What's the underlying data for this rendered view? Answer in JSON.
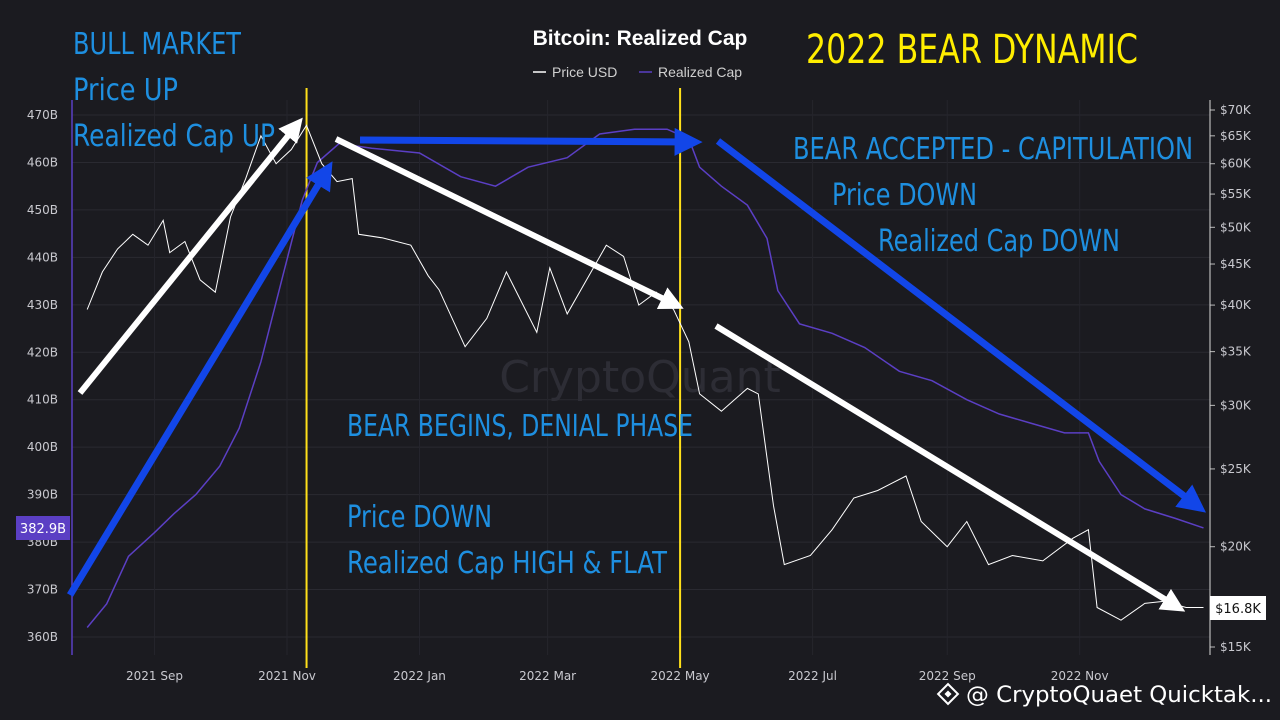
{
  "chart_data": {
    "type": "line",
    "title": "Bitcoin: Realized Cap",
    "headline": "2022 BEAR DYNAMIC",
    "watermark": "CryptoQuant",
    "footer_credit": "@ CryptoQuaet Quicktak...",
    "legend": {
      "placement": "top-center",
      "entries": [
        "Price USD",
        "Realized Cap"
      ]
    },
    "colors": {
      "background": "#1b1b20",
      "price_line": "#ffffff",
      "realized_cap_line": "#5b3fc4",
      "headline": "#ffee00",
      "annotation_text": "#1e8fe0",
      "blue_arrows": "#1246e8",
      "white_arrows": "#ffffff",
      "phase_lines": "#ffe01a",
      "realized_cap_badge": "#5b3fc4",
      "price_badge": "#ffffff"
    },
    "x_ticks": [
      "2021 Sep",
      "2021 Nov",
      "2022 Jan",
      "2022 Mar",
      "2022 May",
      "2022 Jul",
      "2022 Sep",
      "2022 Nov"
    ],
    "left_axis": {
      "unit": "B USD",
      "ticks": [
        "470B",
        "460B",
        "450B",
        "440B",
        "430B",
        "420B",
        "410B",
        "400B",
        "390B",
        "380B",
        "370B",
        "360B"
      ]
    },
    "right_axis": {
      "scale": "log",
      "ticks": [
        "$70K",
        "$65K",
        "$60K",
        "$55K",
        "$50K",
        "$45K",
        "$40K",
        "$35K",
        "$30K",
        "$25K",
        "$20K",
        "$15K"
      ]
    },
    "current_values": {
      "realized_cap": "382.9B",
      "price": "$16.8K"
    },
    "series": [
      {
        "name": "Price USD",
        "axis": "right",
        "points": [
          [
            "2021-08-01",
            39500
          ],
          [
            "2021-08-08",
            44000
          ],
          [
            "2021-08-15",
            47000
          ],
          [
            "2021-08-22",
            49000
          ],
          [
            "2021-08-29",
            47500
          ],
          [
            "2021-09-05",
            51000
          ],
          [
            "2021-09-08",
            46500
          ],
          [
            "2021-09-15",
            48000
          ],
          [
            "2021-09-22",
            43000
          ],
          [
            "2021-09-29",
            41500
          ],
          [
            "2021-10-06",
            51500
          ],
          [
            "2021-10-13",
            57500
          ],
          [
            "2021-10-20",
            65000
          ],
          [
            "2021-10-27",
            60000
          ],
          [
            "2021-11-03",
            62500
          ],
          [
            "2021-11-10",
            67000
          ],
          [
            "2021-11-17",
            60000
          ],
          [
            "2021-11-24",
            57000
          ],
          [
            "2021-12-01",
            57500
          ],
          [
            "2021-12-04",
            49000
          ],
          [
            "2021-12-15",
            48500
          ],
          [
            "2021-12-28",
            47500
          ],
          [
            "2022-01-05",
            43500
          ],
          [
            "2022-01-10",
            41800
          ],
          [
            "2022-01-22",
            35500
          ],
          [
            "2022-02-01",
            38500
          ],
          [
            "2022-02-10",
            44000
          ],
          [
            "2022-02-24",
            37000
          ],
          [
            "2022-03-02",
            44500
          ],
          [
            "2022-03-10",
            39000
          ],
          [
            "2022-03-28",
            47500
          ],
          [
            "2022-04-05",
            46000
          ],
          [
            "2022-04-12",
            40000
          ],
          [
            "2022-04-20",
            41500
          ],
          [
            "2022-04-28",
            39500
          ],
          [
            "2022-05-05",
            36000
          ],
          [
            "2022-05-10",
            31000
          ],
          [
            "2022-05-20",
            29500
          ],
          [
            "2022-06-01",
            31500
          ],
          [
            "2022-06-06",
            31000
          ],
          [
            "2022-06-13",
            22500
          ],
          [
            "2022-06-18",
            19000
          ],
          [
            "2022-06-30",
            19500
          ],
          [
            "2022-07-10",
            21000
          ],
          [
            "2022-07-20",
            23000
          ],
          [
            "2022-07-31",
            23500
          ],
          [
            "2022-08-13",
            24500
          ],
          [
            "2022-08-20",
            21500
          ],
          [
            "2022-09-01",
            20000
          ],
          [
            "2022-09-10",
            21500
          ],
          [
            "2022-09-20",
            19000
          ],
          [
            "2022-10-01",
            19500
          ],
          [
            "2022-10-15",
            19200
          ],
          [
            "2022-10-29",
            20500
          ],
          [
            "2022-11-05",
            21000
          ],
          [
            "2022-11-09",
            16800
          ],
          [
            "2022-11-20",
            16200
          ],
          [
            "2022-12-01",
            17000
          ],
          [
            "2022-12-10",
            17100
          ],
          [
            "2022-12-20",
            16800
          ],
          [
            "2022-12-28",
            16800
          ]
        ]
      },
      {
        "name": "Realized Cap",
        "axis": "left",
        "points": [
          [
            "2021-08-01",
            362
          ],
          [
            "2021-08-10",
            367
          ],
          [
            "2021-08-20",
            377
          ],
          [
            "2021-09-01",
            382
          ],
          [
            "2021-09-10",
            386
          ],
          [
            "2021-09-20",
            390
          ],
          [
            "2021-10-01",
            396
          ],
          [
            "2021-10-10",
            404
          ],
          [
            "2021-10-20",
            418
          ],
          [
            "2021-10-30",
            436
          ],
          [
            "2021-11-08",
            452
          ],
          [
            "2021-11-15",
            460
          ],
          [
            "2021-11-25",
            464
          ],
          [
            "2021-12-10",
            463
          ],
          [
            "2022-01-01",
            462
          ],
          [
            "2022-01-20",
            457
          ],
          [
            "2022-02-05",
            455
          ],
          [
            "2022-02-20",
            459
          ],
          [
            "2022-03-10",
            461
          ],
          [
            "2022-03-25",
            466
          ],
          [
            "2022-04-10",
            467
          ],
          [
            "2022-04-25",
            467
          ],
          [
            "2022-05-05",
            465
          ],
          [
            "2022-05-10",
            459
          ],
          [
            "2022-05-20",
            455
          ],
          [
            "2022-06-01",
            451
          ],
          [
            "2022-06-10",
            444
          ],
          [
            "2022-06-15",
            433
          ],
          [
            "2022-06-25",
            426
          ],
          [
            "2022-07-10",
            424
          ],
          [
            "2022-07-25",
            421
          ],
          [
            "2022-08-10",
            416
          ],
          [
            "2022-08-25",
            414
          ],
          [
            "2022-09-10",
            410
          ],
          [
            "2022-09-25",
            407
          ],
          [
            "2022-10-10",
            405
          ],
          [
            "2022-10-25",
            403
          ],
          [
            "2022-11-05",
            403
          ],
          [
            "2022-11-10",
            397
          ],
          [
            "2022-11-20",
            390
          ],
          [
            "2022-12-01",
            387
          ],
          [
            "2022-12-15",
            385
          ],
          [
            "2022-12-28",
            383
          ]
        ]
      }
    ],
    "phase_lines": [
      "2021-11-10",
      "2022-05-01"
    ],
    "annotations": {
      "bull": [
        "BULL MARKET",
        "Price UP",
        "Realized Cap UP"
      ],
      "denial_title": "BEAR BEGINS, DENIAL PHASE",
      "denial_body": [
        "Price DOWN",
        "Realized Cap HIGH & FLAT"
      ],
      "capitulation": [
        "BEAR ACCEPTED - CAPITULATION",
        "Price DOWN",
        "Realized Cap DOWN"
      ]
    }
  }
}
